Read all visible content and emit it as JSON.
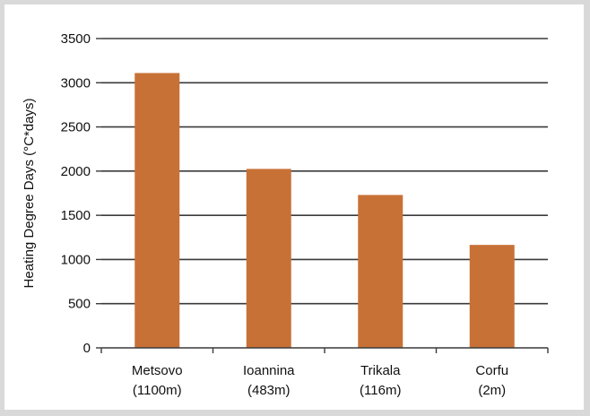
{
  "chart_data": {
    "type": "bar",
    "title": "",
    "xlabel": "",
    "ylabel": "Heating Degree Days (°C*days)",
    "ylim": [
      0,
      3500
    ],
    "yticks": [
      0,
      500,
      1000,
      1500,
      2000,
      2500,
      3000,
      3500
    ],
    "grid": true,
    "legend": "none",
    "bar_color": "#c87137",
    "categories": [
      {
        "name": "Metsovo",
        "sub": "(1100m)"
      },
      {
        "name": "Ioannina",
        "sub": "(483m)"
      },
      {
        "name": "Trikala",
        "sub": "(116m)"
      },
      {
        "name": "Corfu",
        "sub": "(2m)"
      }
    ],
    "values": [
      3110,
      2025,
      1730,
      1165
    ]
  }
}
